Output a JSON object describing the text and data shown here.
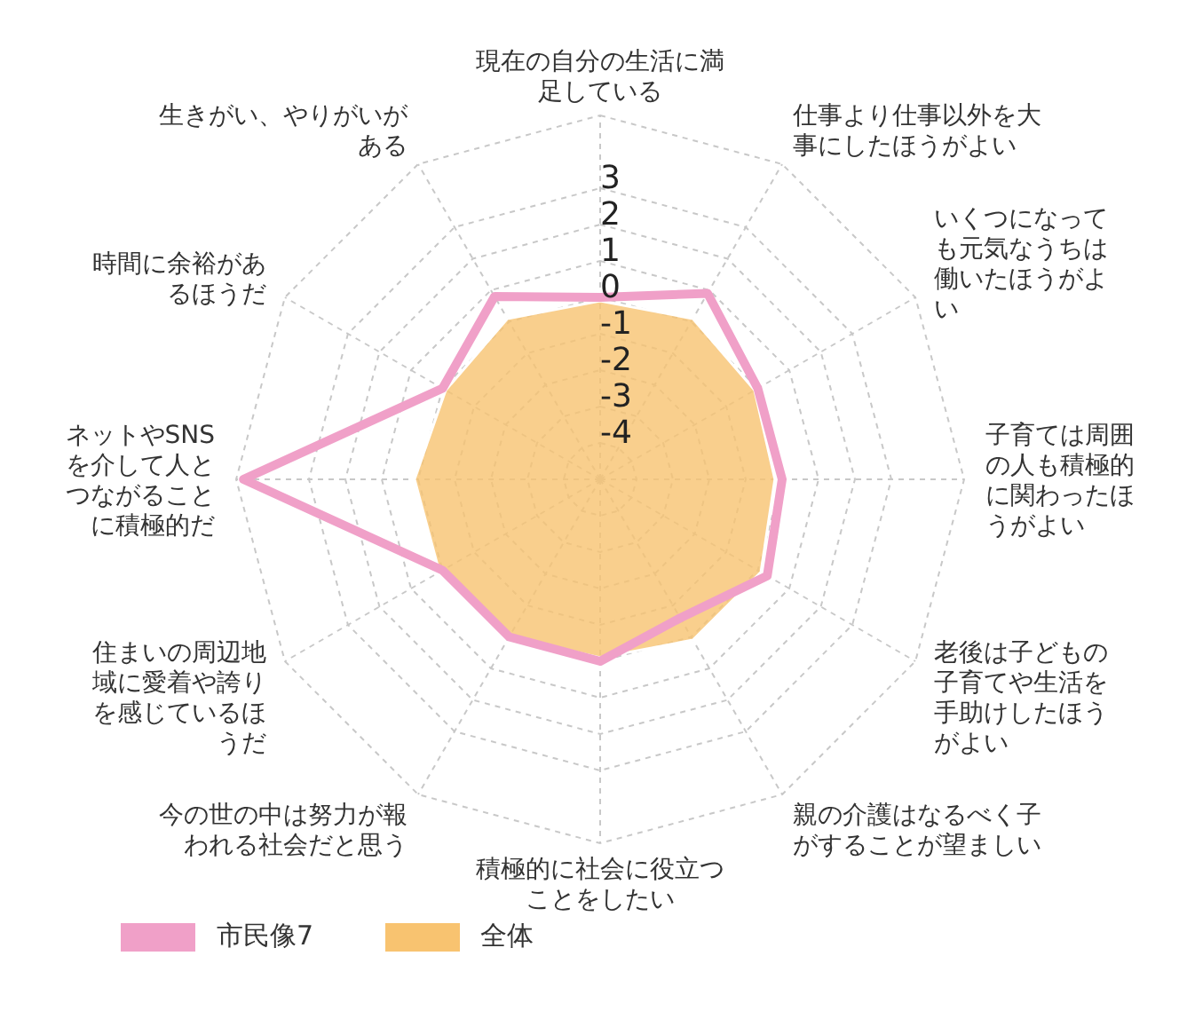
{
  "chart_data": {
    "type": "radar",
    "categories": [
      "現在の自分の生活に満足している",
      "仕事より仕事以外を大事にしたほうがよい",
      "いくつになっても元気なうちは働いたほうがよい",
      "子育ては周囲の人も積極的に関わったほうがよい",
      "老後は子どもの子育てや生活を手助けしたほうがよい",
      "親の介護はなるべく子がすることが望ましい",
      "積極的に社会に役立つことをしたい",
      "今の世の中は努力が報われる社会だと思う",
      "住まいの周辺地域に愛着や誇りを感じているほうだ",
      "ネットやSNSを介して人とつながることに積極的だ",
      "時間に余裕があるほうだ",
      "生きがい、やりがいがある"
    ],
    "series": [
      {
        "name": "全体",
        "color": "#f8c370",
        "values": [
          -0.1,
          0.1,
          -0.1,
          -0.2,
          0.1,
          0.1,
          -0.1,
          0.0,
          0.1,
          0.1,
          -0.1,
          0.1
        ]
      },
      {
        "name": "市民像7",
        "color": "#f0a0c8",
        "values": [
          0.0,
          0.9,
          0.0,
          0.0,
          0.3,
          -0.6,
          0.0,
          0.0,
          0.0,
          4.8,
          0.0,
          0.8
        ]
      }
    ],
    "ylim": [
      -5,
      5
    ],
    "yticks": [
      3,
      2,
      1,
      0,
      -1,
      -2,
      -3,
      -4
    ],
    "grid": true,
    "legend": "bottom left",
    "marker": "none"
  }
}
